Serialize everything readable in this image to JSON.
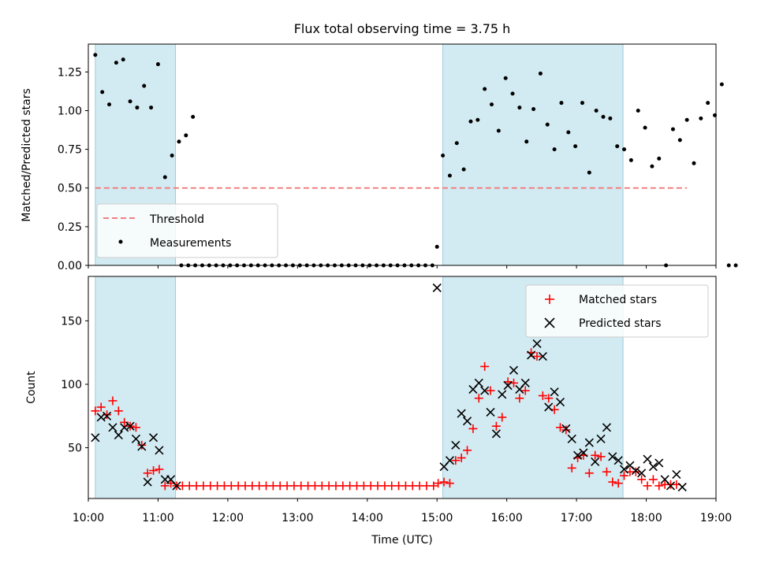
{
  "chart_data": [
    {
      "type": "scatter",
      "title": "Flux total observing time = 3.75 h",
      "ylabel": "Matched/Predicted stars",
      "xlabel": "",
      "xlim": [
        "10:00",
        "19:00"
      ],
      "ylim": [
        0,
        1.43
      ],
      "yticks": [
        "0.00",
        "0.25",
        "0.50",
        "0.75",
        "1.00",
        "1.25"
      ],
      "shaded_intervals": [
        [
          "10:06",
          "11:15"
        ],
        [
          "15:05",
          "17:40"
        ]
      ],
      "threshold": {
        "name": "Threshold",
        "y": 0.5,
        "x_range": [
          "10:06",
          "18:35"
        ],
        "color": "#f08080"
      },
      "legend": {
        "placement": "lower-left",
        "entries": [
          "Threshold",
          "Measurements"
        ]
      },
      "series": [
        {
          "name": "Measurements",
          "marker": "dot",
          "color": "#000000",
          "points": [
            [
              "10:06",
              1.36
            ],
            [
              "10:12",
              1.12
            ],
            [
              "10:18",
              1.04
            ],
            [
              "10:24",
              1.31
            ],
            [
              "10:30",
              1.33
            ],
            [
              "10:36",
              1.06
            ],
            [
              "10:42",
              1.02
            ],
            [
              "10:48",
              1.16
            ],
            [
              "10:54",
              1.02
            ],
            [
              "11:00",
              1.3
            ],
            [
              "11:06",
              0.57
            ],
            [
              "11:12",
              0.71
            ],
            [
              "11:18",
              0.8
            ],
            [
              "11:24",
              0.84
            ],
            [
              "11:30",
              0.96
            ],
            [
              "11:20",
              0.0
            ],
            [
              "11:26",
              0.0
            ],
            [
              "11:32",
              0.0
            ],
            [
              "11:38",
              0.0
            ],
            [
              "11:44",
              0.0
            ],
            [
              "11:50",
              0.0
            ],
            [
              "11:56",
              0.0
            ],
            [
              "12:02",
              0.0
            ],
            [
              "12:08",
              0.0
            ],
            [
              "12:14",
              0.0
            ],
            [
              "12:20",
              0.0
            ],
            [
              "12:26",
              0.0
            ],
            [
              "12:32",
              0.0
            ],
            [
              "12:38",
              0.0
            ],
            [
              "12:44",
              0.0
            ],
            [
              "12:50",
              0.0
            ],
            [
              "12:56",
              0.0
            ],
            [
              "13:02",
              0.0
            ],
            [
              "13:08",
              0.0
            ],
            [
              "13:14",
              0.0
            ],
            [
              "13:20",
              0.0
            ],
            [
              "13:26",
              0.0
            ],
            [
              "13:32",
              0.0
            ],
            [
              "13:38",
              0.0
            ],
            [
              "13:44",
              0.0
            ],
            [
              "13:50",
              0.0
            ],
            [
              "13:56",
              0.0
            ],
            [
              "14:02",
              0.0
            ],
            [
              "14:08",
              0.0
            ],
            [
              "14:14",
              0.0
            ],
            [
              "14:20",
              0.0
            ],
            [
              "14:26",
              0.0
            ],
            [
              "14:32",
              0.0
            ],
            [
              "14:38",
              0.0
            ],
            [
              "14:44",
              0.0
            ],
            [
              "14:50",
              0.0
            ],
            [
              "14:56",
              0.0
            ],
            [
              "15:00",
              0.12
            ],
            [
              "15:05",
              0.71
            ],
            [
              "15:11",
              0.58
            ],
            [
              "15:17",
              0.79
            ],
            [
              "15:23",
              0.62
            ],
            [
              "15:29",
              0.93
            ],
            [
              "15:35",
              0.94
            ],
            [
              "15:41",
              1.14
            ],
            [
              "15:47",
              1.04
            ],
            [
              "15:53",
              0.87
            ],
            [
              "15:59",
              1.21
            ],
            [
              "16:05",
              1.11
            ],
            [
              "16:11",
              1.02
            ],
            [
              "16:17",
              0.8
            ],
            [
              "16:23",
              1.01
            ],
            [
              "16:29",
              1.24
            ],
            [
              "16:35",
              0.91
            ],
            [
              "16:41",
              0.75
            ],
            [
              "16:47",
              1.05
            ],
            [
              "16:53",
              0.86
            ],
            [
              "16:59",
              0.77
            ],
            [
              "17:05",
              1.05
            ],
            [
              "17:11",
              0.6
            ],
            [
              "17:17",
              1.0
            ],
            [
              "17:23",
              0.96
            ],
            [
              "17:29",
              0.95
            ],
            [
              "17:35",
              0.77
            ],
            [
              "17:41",
              0.75
            ],
            [
              "17:47",
              0.68
            ],
            [
              "17:53",
              1.0
            ],
            [
              "17:59",
              0.89
            ],
            [
              "18:05",
              0.64
            ],
            [
              "18:11",
              0.69
            ],
            [
              "18:17",
              0.0
            ],
            [
              "18:23",
              0.88
            ],
            [
              "18:29",
              0.81
            ],
            [
              "18:35",
              0.94
            ],
            [
              "18:41",
              0.66
            ],
            [
              "18:47",
              0.95
            ],
            [
              "18:53",
              1.05
            ],
            [
              "18:59",
              0.97
            ],
            [
              "19:05",
              1.17
            ],
            [
              "19:11",
              0.0
            ],
            [
              "19:17",
              0.0
            ]
          ]
        }
      ]
    },
    {
      "type": "scatter",
      "title": "",
      "ylabel": "Count",
      "xlabel": "Time (UTC)",
      "xlim": [
        "10:00",
        "19:00"
      ],
      "ylim": [
        10,
        185
      ],
      "yticks": [
        "50",
        "100",
        "150"
      ],
      "xticks": [
        "10:00",
        "11:00",
        "12:00",
        "13:00",
        "14:00",
        "15:00",
        "16:00",
        "17:00",
        "18:00",
        "19:00"
      ],
      "shaded_intervals": [
        [
          "10:06",
          "11:15"
        ],
        [
          "15:05",
          "17:40"
        ]
      ],
      "legend": {
        "placement": "upper-right",
        "entries": [
          "Matched stars",
          "Predicted stars"
        ]
      },
      "series": [
        {
          "name": "Matched stars",
          "marker": "plus",
          "color": "#ff0000",
          "points": [
            [
              "10:06",
              79
            ],
            [
              "10:11",
              82
            ],
            [
              "10:16",
              76
            ],
            [
              "10:21",
              87
            ],
            [
              "10:26",
              79
            ],
            [
              "10:31",
              70
            ],
            [
              "10:36",
              67
            ],
            [
              "10:41",
              66
            ],
            [
              "10:46",
              52
            ],
            [
              "10:51",
              30
            ],
            [
              "10:56",
              32
            ],
            [
              "11:01",
              33
            ],
            [
              "11:06",
              20
            ],
            [
              "11:11",
              22
            ],
            [
              "11:16",
              20
            ],
            [
              "11:21",
              20
            ],
            [
              "11:27",
              20
            ],
            [
              "11:33",
              20
            ],
            [
              "11:39",
              20
            ],
            [
              "11:45",
              20
            ],
            [
              "11:51",
              20
            ],
            [
              "11:57",
              20
            ],
            [
              "12:03",
              20
            ],
            [
              "12:09",
              20
            ],
            [
              "12:15",
              20
            ],
            [
              "12:21",
              20
            ],
            [
              "12:27",
              20
            ],
            [
              "12:33",
              20
            ],
            [
              "12:39",
              20
            ],
            [
              "12:45",
              20
            ],
            [
              "12:51",
              20
            ],
            [
              "12:57",
              20
            ],
            [
              "13:03",
              20
            ],
            [
              "13:09",
              20
            ],
            [
              "13:15",
              20
            ],
            [
              "13:21",
              20
            ],
            [
              "13:27",
              20
            ],
            [
              "13:33",
              20
            ],
            [
              "13:39",
              20
            ],
            [
              "13:45",
              20
            ],
            [
              "13:51",
              20
            ],
            [
              "13:57",
              20
            ],
            [
              "14:03",
              20
            ],
            [
              "14:09",
              20
            ],
            [
              "14:15",
              20
            ],
            [
              "14:21",
              20
            ],
            [
              "14:27",
              20
            ],
            [
              "14:33",
              20
            ],
            [
              "14:39",
              20
            ],
            [
              "14:45",
              20
            ],
            [
              "14:51",
              20
            ],
            [
              "14:57",
              20
            ],
            [
              "15:01",
              22
            ],
            [
              "15:06",
              23
            ],
            [
              "15:11",
              22
            ],
            [
              "15:16",
              40
            ],
            [
              "15:21",
              42
            ],
            [
              "15:26",
              48
            ],
            [
              "15:31",
              65
            ],
            [
              "15:36",
              89
            ],
            [
              "15:41",
              114
            ],
            [
              "15:46",
              95
            ],
            [
              "15:51",
              67
            ],
            [
              "15:56",
              74
            ],
            [
              "16:01",
              102
            ],
            [
              "16:06",
              101
            ],
            [
              "16:11",
              89
            ],
            [
              "16:16",
              95
            ],
            [
              "16:21",
              125
            ],
            [
              "16:26",
              122
            ],
            [
              "16:31",
              91
            ],
            [
              "16:36",
              89
            ],
            [
              "16:41",
              80
            ],
            [
              "16:46",
              66
            ],
            [
              "16:51",
              64
            ],
            [
              "16:56",
              34
            ],
            [
              "17:01",
              42
            ],
            [
              "17:06",
              44
            ],
            [
              "17:11",
              30
            ],
            [
              "17:16",
              44
            ],
            [
              "17:21",
              43
            ],
            [
              "17:26",
              31
            ],
            [
              "17:31",
              23
            ],
            [
              "17:36",
              22
            ],
            [
              "17:41",
              28
            ],
            [
              "17:46",
              31
            ],
            [
              "17:51",
              31
            ],
            [
              "17:56",
              25
            ],
            [
              "18:01",
              20
            ],
            [
              "18:06",
              25
            ],
            [
              "18:11",
              20
            ],
            [
              "18:16",
              21
            ],
            [
              "18:21",
              21
            ],
            [
              "18:26",
              21
            ]
          ]
        },
        {
          "name": "Predicted stars",
          "marker": "x",
          "color": "#000000",
          "points": [
            [
              "10:06",
              58
            ],
            [
              "10:11",
              74
            ],
            [
              "10:16",
              75
            ],
            [
              "10:21",
              66
            ],
            [
              "10:26",
              60
            ],
            [
              "10:31",
              66
            ],
            [
              "10:36",
              67
            ],
            [
              "10:41",
              57
            ],
            [
              "10:46",
              51
            ],
            [
              "10:51",
              23
            ],
            [
              "10:56",
              58
            ],
            [
              "11:01",
              48
            ],
            [
              "11:06",
              25
            ],
            [
              "11:11",
              25
            ],
            [
              "11:16",
              20
            ],
            [
              "15:00",
              176
            ],
            [
              "15:06",
              35
            ],
            [
              "15:11",
              40
            ],
            [
              "15:16",
              52
            ],
            [
              "15:21",
              77
            ],
            [
              "15:26",
              71
            ],
            [
              "15:31",
              96
            ],
            [
              "15:36",
              101
            ],
            [
              "15:41",
              95
            ],
            [
              "15:46",
              78
            ],
            [
              "15:51",
              61
            ],
            [
              "15:56",
              92
            ],
            [
              "16:01",
              99
            ],
            [
              "16:06",
              111
            ],
            [
              "16:11",
              96
            ],
            [
              "16:16",
              101
            ],
            [
              "16:21",
              123
            ],
            [
              "16:26",
              132
            ],
            [
              "16:31",
              122
            ],
            [
              "16:36",
              82
            ],
            [
              "16:41",
              94
            ],
            [
              "16:46",
              86
            ],
            [
              "16:51",
              65
            ],
            [
              "16:56",
              57
            ],
            [
              "17:01",
              44
            ],
            [
              "17:06",
              46
            ],
            [
              "17:11",
              54
            ],
            [
              "17:16",
              39
            ],
            [
              "17:21",
              57
            ],
            [
              "17:26",
              66
            ],
            [
              "17:31",
              43
            ],
            [
              "17:36",
              40
            ],
            [
              "17:41",
              33
            ],
            [
              "17:46",
              36
            ],
            [
              "17:51",
              32
            ],
            [
              "17:56",
              30
            ],
            [
              "18:01",
              41
            ],
            [
              "18:06",
              35
            ],
            [
              "18:11",
              38
            ],
            [
              "18:16",
              25
            ],
            [
              "18:21",
              20
            ],
            [
              "18:26",
              29
            ],
            [
              "18:31",
              19
            ]
          ]
        }
      ]
    }
  ]
}
